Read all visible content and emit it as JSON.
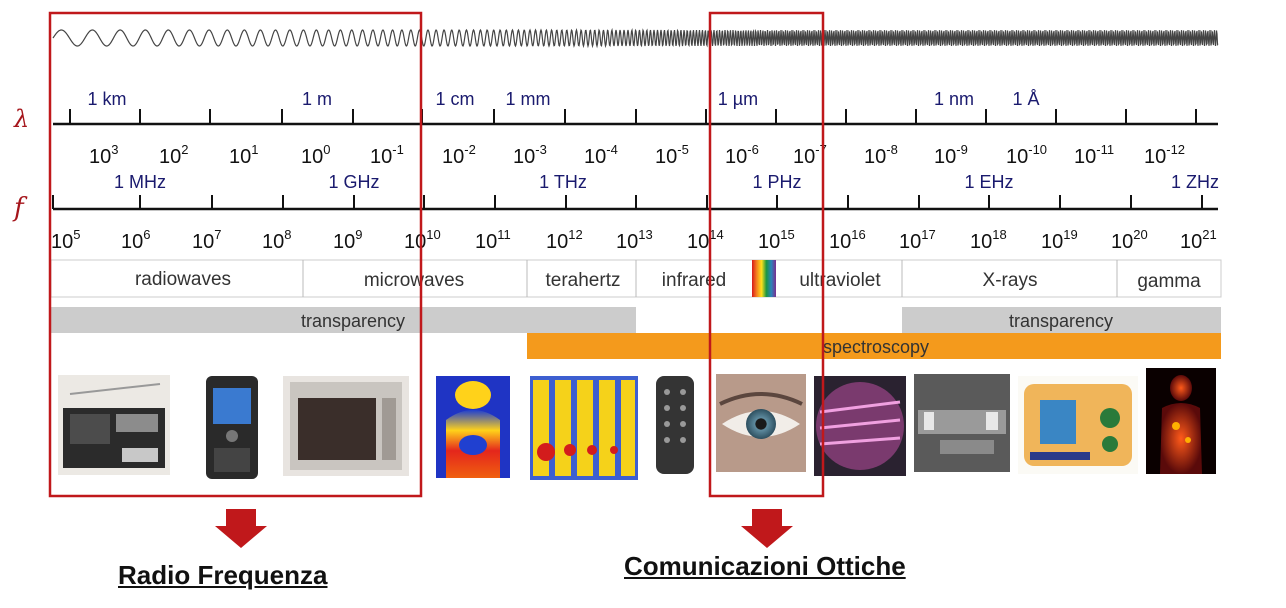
{
  "symbols": {
    "lambda": "λ",
    "frequency": "f"
  },
  "wavelength_labels": [
    "1 km",
    "1 m",
    "1 cm",
    "1 mm",
    "1 µm",
    "1 nm",
    "1 Å"
  ],
  "wavelength_exponents": [
    "3",
    "2",
    "1",
    "0",
    "-1",
    "-2",
    "-3",
    "-4",
    "-5",
    "-6",
    "-7",
    "-8",
    "-9",
    "-10",
    "-11",
    "-12"
  ],
  "frequency_labels": [
    "1 MHz",
    "1 GHz",
    "1 THz",
    "1 PHz",
    "1 EHz",
    "1 ZHz"
  ],
  "frequency_exponents": [
    "5",
    "6",
    "7",
    "8",
    "9",
    "10",
    "11",
    "12",
    "13",
    "14",
    "15",
    "16",
    "17",
    "18",
    "19",
    "20",
    "21"
  ],
  "power_base": "10",
  "bands": [
    "radiowaves",
    "microwaves",
    "terahertz",
    "infrared",
    "ultraviolet",
    "X-rays",
    "gamma"
  ],
  "bars": {
    "transparency_left": "transparency",
    "transparency_right": "transparency",
    "spectroscopy": "spectroscopy"
  },
  "pictures": [
    "radio",
    "mobile-phone",
    "microwave-oven",
    "thermal-image",
    "terahertz-scan",
    "remote-control",
    "eye",
    "uv-lithography",
    "dental-x-ray",
    "luggage-x-ray",
    "pet-scan"
  ],
  "captions": {
    "left": "Radio Frequenza",
    "right": "Comunicazioni Ottiche"
  },
  "colors": {
    "highlight": "#c0181b",
    "spectroscopy": "#f49a1c",
    "transparency": "#cccccc",
    "axis": "#111111",
    "unit_labels": "#1a1a6e"
  }
}
